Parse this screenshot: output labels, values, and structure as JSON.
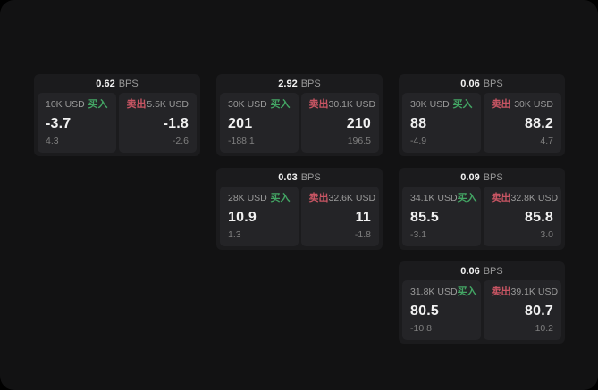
{
  "labels": {
    "bps_unit": "BPS",
    "buy": "买入",
    "sell": "卖出"
  },
  "colors": {
    "page_bg": "#000000",
    "window_bg": "#121213",
    "card_bg": "#1b1b1d",
    "panel_bg": "#242427",
    "text": "#f2f2f2",
    "muted": "#9a9a9a",
    "dim": "#7f7f7f",
    "buy": "#43a564",
    "sell": "#c75563"
  },
  "cards": [
    {
      "bps": "0.62",
      "buy": {
        "size": "10K USD",
        "value": "-3.7",
        "delta": "4.3"
      },
      "sell": {
        "size": "5.5K USD",
        "value": "-1.8",
        "delta": "-2.6"
      }
    },
    {
      "bps": "2.92",
      "buy": {
        "size": "30K USD",
        "value": "201",
        "delta": "-188.1"
      },
      "sell": {
        "size": "30.1K USD",
        "value": "210",
        "delta": "196.5"
      }
    },
    {
      "bps": "0.06",
      "buy": {
        "size": "30K USD",
        "value": "88",
        "delta": "-4.9"
      },
      "sell": {
        "size": "30K USD",
        "value": "88.2",
        "delta": "4.7"
      }
    },
    {
      "bps": "0.03",
      "buy": {
        "size": "28K USD",
        "value": "10.9",
        "delta": "1.3"
      },
      "sell": {
        "size": "32.6K USD",
        "value": "11",
        "delta": "-1.8"
      }
    },
    {
      "bps": "0.09",
      "buy": {
        "size": "34.1K USD",
        "value": "85.5",
        "delta": "-3.1"
      },
      "sell": {
        "size": "32.8K USD",
        "value": "85.8",
        "delta": "3.0"
      }
    },
    {
      "bps": "0.06",
      "buy": {
        "size": "31.8K USD",
        "value": "80.5",
        "delta": "-10.8"
      },
      "sell": {
        "size": "39.1K USD",
        "value": "80.7",
        "delta": "10.2"
      }
    }
  ]
}
